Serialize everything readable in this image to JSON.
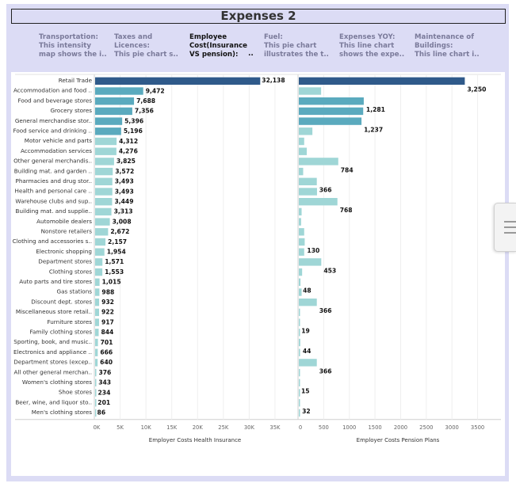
{
  "dashboard": {
    "title": "Expenses 2",
    "story_points": [
      {
        "line1": "Transportation:",
        "line2": "This intensity",
        "line3": "map shows the i.."
      },
      {
        "line1": "Taxes and",
        "line2": "Licences:",
        "line3": "This pie chart s.."
      },
      {
        "line1": "Employee",
        "line2": "Cost(Insurance",
        "line3": "VS pension):"
      },
      {
        "line1": "Fuel:",
        "line2": "This pie chart",
        "line3": "illustrates the t.."
      },
      {
        "line1": "Expenses YOY:",
        "line2": "This line chart",
        "line3": "shows the expe.."
      },
      {
        "line1": "Maintenance of",
        "line2": "Buildings:",
        "line3": "This line chart i.."
      }
    ],
    "active_story_dots": ".."
  },
  "chart_data": [
    {
      "type": "bar",
      "orientation": "horizontal",
      "xlabel": "Employer Costs Health Insurance",
      "xlim": [
        0,
        39000
      ],
      "ticks": [
        "0K",
        "5K",
        "10K",
        "15K",
        "20K",
        "25K",
        "30K",
        "35K"
      ],
      "tick_values": [
        0,
        5000,
        10000,
        15000,
        20000,
        25000,
        30000,
        35000
      ],
      "categories": [
        "Retail Trade",
        "Accommodation and food ..",
        "Food and beverage stores",
        "Grocery stores",
        "General merchandise stor..",
        "Food service and drinking ..",
        "Motor vehicle and parts",
        "Accommodation services",
        "Other general merchandis..",
        "Building mat. and garden ..",
        "Pharmacies and drug stor..",
        "Health and personal care ..",
        "Warehouse clubs and sup..",
        "Building mat. and supplie..",
        "Automobile dealers",
        "Nonstore retailers",
        "Clothing and accessories s..",
        "Electronic shopping",
        "Department stores",
        "Clothing stores",
        "Auto parts and tire stores",
        "Gas stations",
        "Discount dept. stores",
        "Miscellaneous store retail..",
        "Furniture stores",
        "Family clothing stores",
        "Sporting, book, and music..",
        "Electronics and appliance ..",
        "Department stores (excep..",
        "All other general merchan..",
        "Women's clothing stores",
        "Shoe stores",
        "Beer, wine, and liquor sto..",
        "Men's clothing stores"
      ],
      "values": [
        32138,
        9472,
        7688,
        7356,
        5396,
        5196,
        4312,
        4276,
        3825,
        3572,
        3493,
        3493,
        3449,
        3313,
        3008,
        2672,
        2157,
        1954,
        1571,
        1553,
        1015,
        988,
        932,
        922,
        917,
        844,
        701,
        666,
        640,
        376,
        343,
        234,
        201,
        86
      ],
      "value_labels": [
        "32,138",
        "9,472",
        "7,688",
        "7,356",
        "5,396",
        "5,196",
        "4,312",
        "4,276",
        "3,825",
        "3,572",
        "3,493",
        "3,493",
        "3,449",
        "3,313",
        "3,008",
        "2,672",
        "2,157",
        "1,954",
        "1,571",
        "1,553",
        "1,015",
        "988",
        "932",
        "922",
        "917",
        "844",
        "701",
        "666",
        "640",
        "376",
        "343",
        "234",
        "201",
        "86"
      ]
    },
    {
      "type": "bar",
      "orientation": "horizontal",
      "xlabel": "Employer Costs Pension Plans",
      "xlim": [
        0,
        3800
      ],
      "ticks": [
        "0",
        "500",
        "1000",
        "1500",
        "2000",
        "2500",
        "3000",
        "3500"
      ],
      "tick_values": [
        0,
        500,
        1000,
        1500,
        2000,
        2500,
        3000,
        3500
      ],
      "values": [
        3250,
        450,
        1281,
        1270,
        1237,
        280,
        120,
        170,
        784,
        100,
        366,
        370,
        768,
        70,
        60,
        120,
        130,
        120,
        453,
        80,
        48,
        70,
        366,
        30,
        19,
        15,
        44,
        40,
        366,
        20,
        15,
        12,
        32,
        10
      ],
      "value_labels": {
        "0": "3,250",
        "2": "1,281",
        "4": "1,237",
        "8": "784",
        "10": "366",
        "12": "768",
        "16": "130",
        "18": "453",
        "20": "48",
        "22": "366",
        "24": "19",
        "26": "44",
        "28": "366",
        "30": "15",
        "32": "32"
      }
    }
  ],
  "colors": {
    "frame": "#dcdcf5",
    "bar_dark": "#2f5a8a",
    "bar_mid": "#5aaabe",
    "bar_light": "#9fd6d6"
  }
}
